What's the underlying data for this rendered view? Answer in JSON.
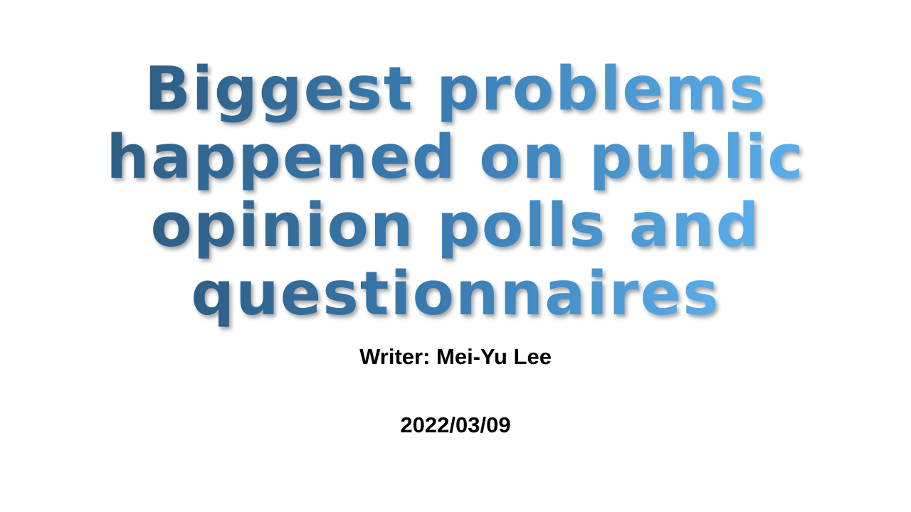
{
  "slide": {
    "title_lines": [
      "Biggest problems",
      "happened on public",
      "opinion polls and",
      "questionnaires"
    ],
    "writer": "Writer: Mei-Yu Lee",
    "date": "2022/03/09"
  },
  "colors": {
    "title_gradient_start": "#2e5f86",
    "title_gradient_end": "#5aaeea",
    "body_text": "#000000",
    "background": "#ffffff"
  }
}
